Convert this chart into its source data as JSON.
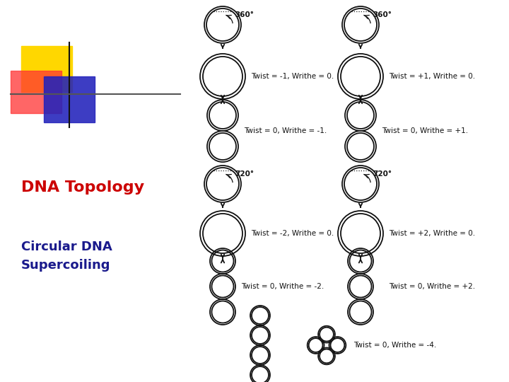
{
  "bg_color": "#ffffff",
  "text_title1": "DNA Topology",
  "text_title2": "Circular DNA\nSupercoiling",
  "title1_color": "#cc0000",
  "title2_color": "#1a1a8c",
  "title1_fontsize": 16,
  "title2_fontsize": 13,
  "label_fontsize": 7.5,
  "labels": {
    "top_left_360": "360°",
    "top_right_360": "360°",
    "mid_left_twist1": "Twist = -1, Writhe = 0.",
    "mid_left_twist2": "Twist = 0, Writhe = -1.",
    "mid_right_twist1": "Twist = +1, Writhe = 0.",
    "mid_right_twist2": "Twist = 0, Writhe = +1.",
    "bot_left_720": "720°",
    "bot_right_720": "720°",
    "bot_left_twist1": "Twist = -2, Writhe = 0.",
    "bot_left_twist2": "Twist = 0, Writhe = -2.",
    "bot_right_twist1": "Twist = +2, Writhe = 0.",
    "bot_right_twist2": "Twist = 0, Writhe = +2.",
    "bottom_final": "Twist = 0, Writhe = -4."
  },
  "draw_color": "#111111",
  "line_lw": 1.3
}
